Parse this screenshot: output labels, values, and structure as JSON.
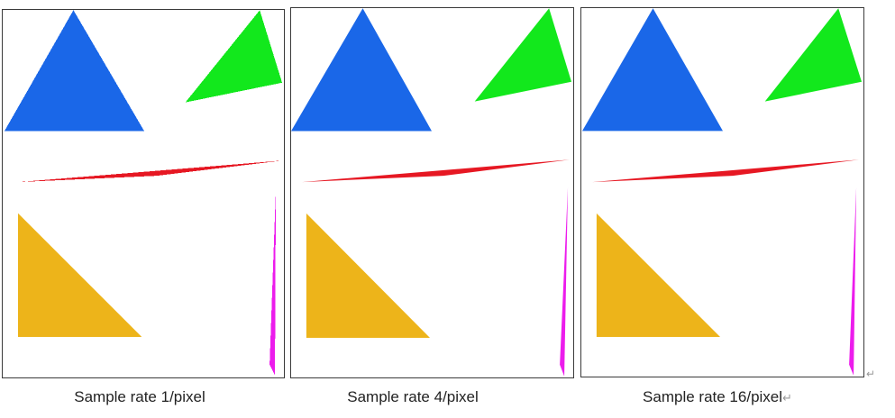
{
  "panels": [
    {
      "caption": "Sample rate 1/pixel",
      "sample_rate": 1,
      "shapes": [
        {
          "name": "blue-triangle",
          "color": "#1a67e8"
        },
        {
          "name": "green-triangle",
          "color": "#12e81c"
        },
        {
          "name": "red-sliver",
          "color": "#e61823"
        },
        {
          "name": "orange-triangle",
          "color": "#edb41a"
        },
        {
          "name": "magenta-sliver",
          "color": "#ec1cec"
        }
      ]
    },
    {
      "caption": "Sample rate 4/pixel",
      "sample_rate": 4,
      "shapes": [
        {
          "name": "blue-triangle",
          "color": "#1a67e8"
        },
        {
          "name": "green-triangle",
          "color": "#12e81c"
        },
        {
          "name": "red-sliver",
          "color": "#e61823"
        },
        {
          "name": "orange-triangle",
          "color": "#edb41a"
        },
        {
          "name": "magenta-sliver",
          "color": "#ec1cec"
        }
      ]
    },
    {
      "caption": "Sample rate 16/pixel",
      "sample_rate": 16,
      "shapes": [
        {
          "name": "blue-triangle",
          "color": "#1a67e8"
        },
        {
          "name": "green-triangle",
          "color": "#12e81c"
        },
        {
          "name": "red-sliver",
          "color": "#e61823"
        },
        {
          "name": "orange-triangle",
          "color": "#edb41a"
        },
        {
          "name": "magenta-sliver",
          "color": "#ec1cec"
        }
      ]
    }
  ],
  "return_mark": "↵"
}
